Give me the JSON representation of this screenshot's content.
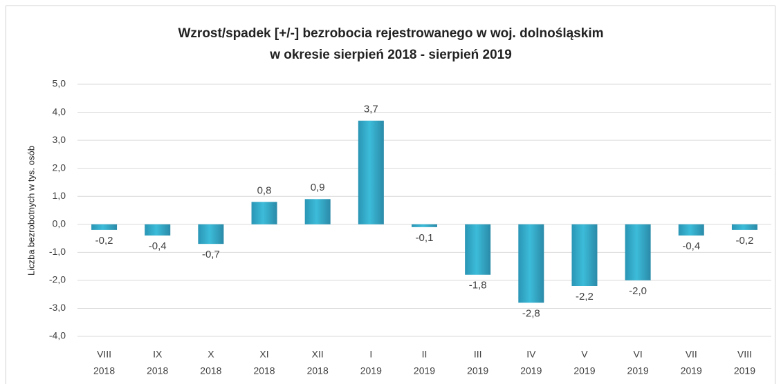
{
  "chart_data": {
    "type": "bar",
    "title": [
      "Wzrost/spadek [+/-] bezrobocia rejestrowanego w woj. dolnośląskim",
      "w okresie sierpień 2018 - sierpień 2019"
    ],
    "y_label": "Liczba bezrobotnych w tys. osób",
    "categories": [
      [
        "VIII",
        "2018"
      ],
      [
        "IX",
        "2018"
      ],
      [
        "X",
        "2018"
      ],
      [
        "XI",
        "2018"
      ],
      [
        "XII",
        "2018"
      ],
      [
        "I",
        "2019"
      ],
      [
        "II",
        "2019"
      ],
      [
        "III",
        "2019"
      ],
      [
        "IV",
        "2019"
      ],
      [
        "V",
        "2019"
      ],
      [
        "VI",
        "2019"
      ],
      [
        "VII",
        "2019"
      ],
      [
        "VIII",
        "2019"
      ]
    ],
    "values": [
      -0.2,
      -0.4,
      -0.7,
      0.8,
      0.9,
      3.7,
      -0.1,
      -1.8,
      -2.8,
      -2.2,
      -2.0,
      -0.4,
      -0.2
    ],
    "value_labels": [
      "-0,2",
      "-0,4",
      "-0,7",
      "0,8",
      "0,9",
      "3,7",
      "-0,1",
      "-1,8",
      "-2,8",
      "-2,2",
      "-2,0",
      "-0,4",
      "-0,2"
    ],
    "color": "#3cbcd9",
    "ylim": [
      -4,
      5
    ],
    "yticks": [
      {
        "value": -4,
        "label": "-4,0"
      },
      {
        "value": -3,
        "label": "-3,0"
      },
      {
        "value": -2,
        "label": "-2,0"
      },
      {
        "value": -1,
        "label": "-1,0"
      },
      {
        "value": 0,
        "label": "0,0"
      },
      {
        "value": 1,
        "label": "1,0"
      },
      {
        "value": 2,
        "label": "2,0"
      },
      {
        "value": 3,
        "label": "3,0"
      },
      {
        "value": 4,
        "label": "4,0"
      },
      {
        "value": 5,
        "label": "5,0"
      }
    ],
    "grid": true
  }
}
